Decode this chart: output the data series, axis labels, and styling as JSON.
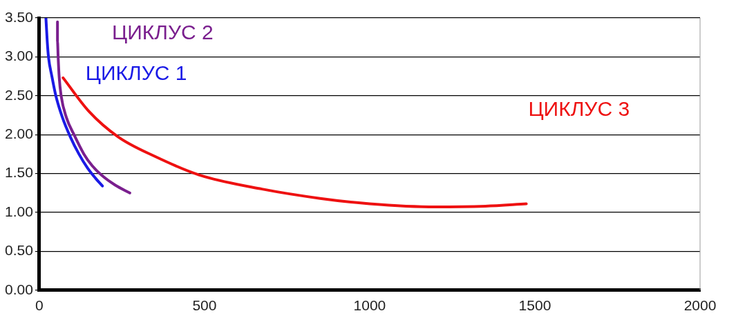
{
  "chart_data": {
    "type": "line",
    "xlim": [
      0,
      2000
    ],
    "xticks": [
      0,
      500,
      1000,
      1500,
      2000
    ],
    "ylim": [
      0,
      3.5
    ],
    "yticks": [
      {
        "value": 0,
        "label": "0.00"
      },
      {
        "value": 0.5,
        "label": "0.50"
      },
      {
        "value": 1,
        "label": "1.00"
      },
      {
        "value": 1.5,
        "label": "1.50"
      },
      {
        "value": 2,
        "label": "2.00"
      },
      {
        "value": 2.5,
        "label": "2.50"
      },
      {
        "value": 3,
        "label": "3.00"
      },
      {
        "value": 3.5,
        "label": "3.50"
      }
    ],
    "grid": "y",
    "legend": false,
    "marker": "none",
    "line_style": "solid",
    "series": [
      {
        "name": "ЦИКЛУС 1",
        "color": "#1a1ae6",
        "x": [
          20,
          24,
          28,
          38,
          50,
          70,
          94,
          120,
          146,
          170,
          191
        ],
        "values": [
          3.5,
          3.2,
          2.99,
          2.75,
          2.5,
          2.22,
          1.97,
          1.75,
          1.57,
          1.44,
          1.34
        ]
      },
      {
        "name": "ЦИКЛУС 2",
        "color": "#7a1f8e",
        "x": [
          55,
          55,
          57,
          60,
          66,
          82,
          105,
          135,
          160,
          188,
          230,
          274
        ],
        "values": [
          3.45,
          3.2,
          3.0,
          2.75,
          2.5,
          2.22,
          2.0,
          1.75,
          1.6,
          1.48,
          1.35,
          1.25
        ]
      },
      {
        "name": "ЦИКЛУС 3",
        "color": "#ee1111",
        "x": [
          72,
          150,
          239,
          350,
          485,
          674,
          850,
          1000,
          1200,
          1350,
          1474
        ],
        "values": [
          2.73,
          2.3,
          1.97,
          1.72,
          1.48,
          1.3,
          1.18,
          1.11,
          1.07,
          1.08,
          1.11
        ]
      }
    ]
  }
}
